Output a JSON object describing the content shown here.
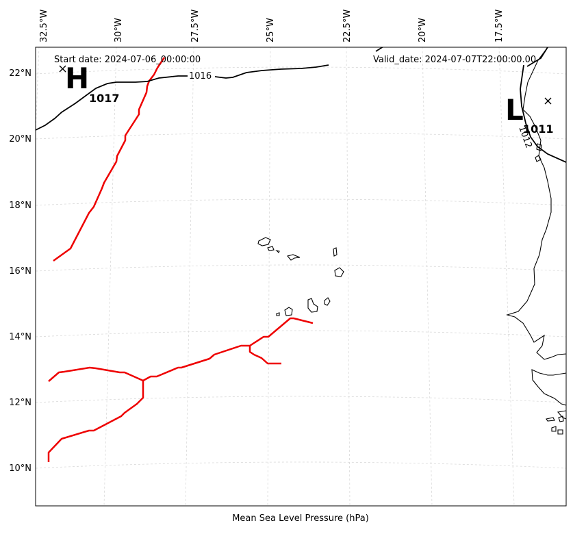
{
  "map": {
    "start_label": "Start date: 2024-07-06_00:00:00",
    "valid_label": "Valid_date: 2024-07-07T22:00:00.00",
    "xlabel": "Mean Sea Level Pressure (hPa)",
    "lon_ticks": [
      {
        "lon": -32.5,
        "label": "32.5°W"
      },
      {
        "lon": -30,
        "label": "30°W"
      },
      {
        "lon": -27.5,
        "label": "27.5°W"
      },
      {
        "lon": -25,
        "label": "25°W"
      },
      {
        "lon": -22.5,
        "label": "22.5°W"
      },
      {
        "lon": -20,
        "label": "20°W"
      },
      {
        "lon": -17.5,
        "label": "17.5°W"
      }
    ],
    "lat_ticks": [
      {
        "lat": 22,
        "label": "22°N"
      },
      {
        "lat": 20,
        "label": "20°N"
      },
      {
        "lat": 18,
        "label": "18°N"
      },
      {
        "lat": 16,
        "label": "16°N"
      },
      {
        "lat": 14,
        "label": "14°N"
      },
      {
        "lat": 12,
        "label": "12°N"
      },
      {
        "lat": 10,
        "label": "10°N"
      }
    ],
    "pressure_centers": [
      {
        "type": "high",
        "letter": "H",
        "value": "1017",
        "lon": -32.8,
        "lat": 22.1
      },
      {
        "type": "low",
        "letter": "L",
        "value": "1011",
        "lon": -16.3,
        "lat": 21.1
      }
    ],
    "isobar_labels": [
      {
        "value": "1016",
        "lon": -27.0,
        "lat": 21.8
      },
      {
        "value": "1012",
        "lon": -17.2,
        "lat": 20.1
      }
    ]
  },
  "colors": {
    "trough": "#ee0000",
    "isobar": "#000000",
    "coast": "#000000",
    "grid": "#d9d9d9"
  }
}
